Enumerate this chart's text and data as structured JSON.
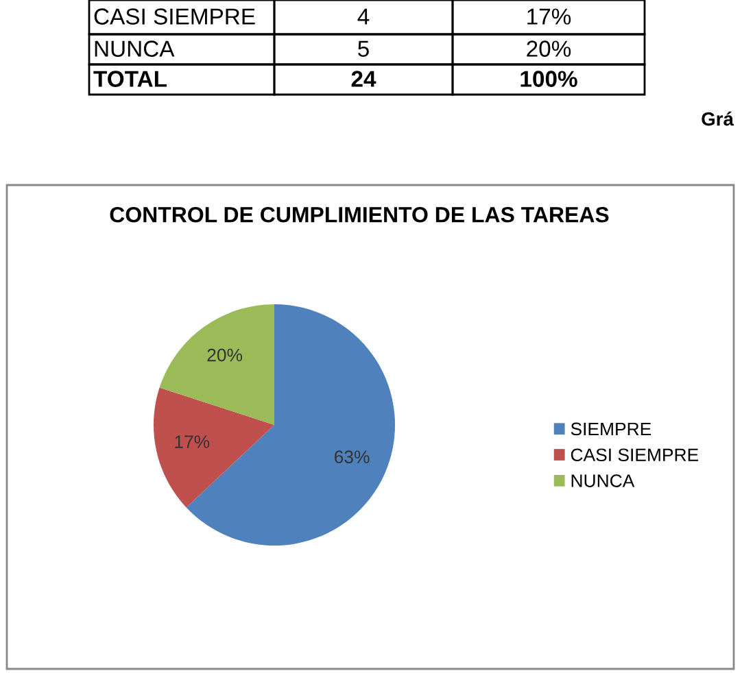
{
  "chart_data": {
    "type": "pie",
    "title": "CONTROL DE CUMPLIMIENTO DE LAS TAREAS",
    "categories": [
      "SIEMPRE",
      "CASI SIEMPRE",
      "NUNCA"
    ],
    "values": [
      63,
      17,
      20
    ],
    "colors": [
      "#4f81bd",
      "#c0504d",
      "#9bbb59"
    ],
    "value_labels": [
      "63%",
      "17%",
      "20%"
    ],
    "legend": "right",
    "annotations": [
      "CASI SIEMPRE",
      "4",
      "17%",
      "NUNCA",
      "5",
      "20%",
      "TOTAL",
      "24",
      "100%",
      "Grá"
    ]
  }
}
